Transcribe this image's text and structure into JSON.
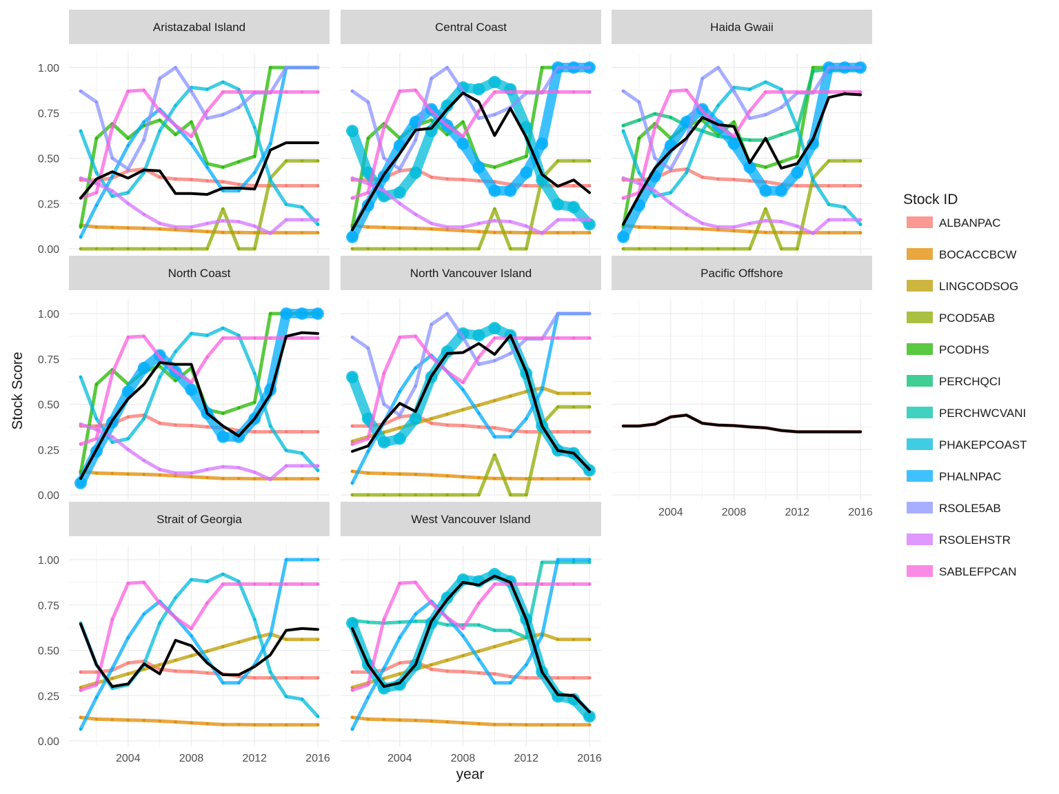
{
  "chart_data": {
    "type": "line",
    "facet_by": "Region",
    "xlabel": "year",
    "ylabel": "Stock Score",
    "xlim": [
      2001,
      2016
    ],
    "ylim": [
      0,
      1
    ],
    "x_ticks": [
      2004,
      2008,
      2012,
      2016
    ],
    "y_ticks": [
      0,
      0.25,
      0.5,
      0.75,
      1
    ],
    "y_tick_labels": [
      "0.00",
      "0.25",
      "0.50",
      "0.75",
      "1.00"
    ],
    "grid": true,
    "legend": {
      "title": "Stock ID",
      "position": "right"
    },
    "years": [
      2001,
      2002,
      2003,
      2004,
      2005,
      2006,
      2007,
      2008,
      2009,
      2010,
      2011,
      2012,
      2013,
      2014,
      2015,
      2016
    ],
    "series": [
      {
        "name": "ALBANPAC",
        "color": "#F8766D",
        "values": [
          0.38,
          0.38,
          0.39,
          0.43,
          0.44,
          0.395,
          0.385,
          0.382,
          0.375,
          0.37,
          0.355,
          0.348,
          0.348,
          0.348,
          0.348,
          0.348
        ]
      },
      {
        "name": "BOCACCBCW",
        "color": "#E18A00",
        "values": [
          0.13,
          0.12,
          0.118,
          0.115,
          0.113,
          0.11,
          0.105,
          0.1,
          0.095,
          0.09,
          0.09,
          0.089,
          0.089,
          0.089,
          0.089,
          0.089
        ]
      },
      {
        "name": "LINGCODSOG",
        "color": "#BE9C00",
        "values": [
          0.295,
          0.32,
          0.345,
          0.37,
          0.395,
          0.42,
          0.445,
          0.47,
          0.495,
          0.52,
          0.545,
          0.57,
          0.59,
          0.56,
          0.56,
          0.56
        ]
      },
      {
        "name": "PCOD5AB",
        "color": "#8CAB00",
        "values": [
          0,
          0,
          0,
          0,
          0,
          0,
          0,
          0,
          0,
          0.22,
          0,
          0,
          0.39,
          0.485,
          0.485,
          0.485
        ]
      },
      {
        "name": "PCODHS",
        "color": "#24B700",
        "values": [
          0.12,
          0.61,
          0.69,
          0.61,
          0.68,
          0.71,
          0.63,
          0.7,
          0.47,
          0.45,
          0.48,
          0.51,
          1,
          1,
          1,
          1
        ]
      },
      {
        "name": "PERCHQCI",
        "color": "#00BE70",
        "values": [
          0.68,
          0.71,
          0.745,
          0.725,
          0.68,
          0.65,
          0.62,
          0.61,
          0.6,
          0.6,
          0.63,
          0.66,
          0.98,
          0.99,
          0.99,
          0.99
        ]
      },
      {
        "name": "PERCHWCVANI",
        "color": "#00C1AB",
        "values": [
          0.665,
          0.655,
          0.65,
          0.655,
          0.66,
          0.66,
          0.64,
          0.64,
          0.64,
          0.61,
          0.61,
          0.57,
          0.985,
          0.985,
          0.985,
          0.985
        ]
      },
      {
        "name": "PHAKEPCOAST",
        "color": "#00BBDA",
        "values": [
          0.65,
          0.42,
          0.29,
          0.31,
          0.42,
          0.65,
          0.79,
          0.89,
          0.88,
          0.92,
          0.88,
          0.67,
          0.38,
          0.245,
          0.23,
          0.135
        ]
      },
      {
        "name": "PHALNPAC",
        "color": "#00ACFC",
        "values": [
          0.065,
          0.24,
          0.4,
          0.57,
          0.7,
          0.77,
          0.68,
          0.58,
          0.45,
          0.32,
          0.32,
          0.42,
          0.58,
          1,
          1,
          1
        ]
      },
      {
        "name": "RSOLE5AB",
        "color": "#8B93FF",
        "values": [
          0.87,
          0.81,
          0.5,
          0.44,
          0.6,
          0.94,
          1,
          0.87,
          0.72,
          0.74,
          0.78,
          0.86,
          0.86,
          1,
          1,
          1
        ]
      },
      {
        "name": "RSOLEHSTR",
        "color": "#D575FE",
        "values": [
          0.39,
          0.36,
          0.32,
          0.25,
          0.19,
          0.14,
          0.12,
          0.12,
          0.14,
          0.155,
          0.15,
          0.125,
          0.085,
          0.16,
          0.16,
          0.16
        ]
      },
      {
        "name": "SABLEFPCAN",
        "color": "#F962DD",
        "values": [
          0.28,
          0.31,
          0.67,
          0.87,
          0.875,
          0.76,
          0.68,
          0.62,
          0.76,
          0.865,
          0.865,
          0.865,
          0.865,
          0.865,
          0.865,
          0.865
        ]
      }
    ],
    "facets": [
      {
        "title": "Aristazabal Island",
        "stocks": [
          "ALBANPAC",
          "BOCACCBCW",
          "PCOD5AB",
          "PCODHS",
          "PHAKEPCOAST",
          "PHALNPAC",
          "RSOLE5AB",
          "RSOLEHSTR",
          "SABLEFPCAN"
        ],
        "thick": [],
        "mean": [
          0.28,
          0.385,
          0.425,
          0.39,
          0.435,
          0.43,
          0.305,
          0.305,
          0.3,
          0.335,
          0.335,
          0.33,
          0.545,
          0.585,
          0.585,
          0.585
        ]
      },
      {
        "title": "Central Coast",
        "stocks": [
          "ALBANPAC",
          "BOCACCBCW",
          "PCOD5AB",
          "PCODHS",
          "PHAKEPCOAST",
          "PHALNPAC",
          "RSOLE5AB",
          "RSOLEHSTR",
          "SABLEFPCAN"
        ],
        "thick": [
          "PHAKEPCOAST",
          "PHALNPAC"
        ],
        "mean": [
          0.105,
          0.26,
          0.41,
          0.525,
          0.655,
          0.665,
          0.77,
          0.86,
          0.81,
          0.625,
          0.775,
          0.615,
          0.41,
          0.345,
          0.38,
          0.31
        ]
      },
      {
        "title": "Haida Gwaii",
        "stocks": [
          "ALBANPAC",
          "BOCACCBCW",
          "PCOD5AB",
          "PCODHS",
          "PERCHQCI",
          "PHAKEPCOAST",
          "PHALNPAC",
          "RSOLE5AB",
          "RSOLEHSTR",
          "SABLEFPCAN"
        ],
        "thick": [
          "PHALNPAC"
        ],
        "mean": [
          0.135,
          0.295,
          0.445,
          0.54,
          0.61,
          0.725,
          0.685,
          0.675,
          0.475,
          0.61,
          0.445,
          0.47,
          0.605,
          0.835,
          0.855,
          0.85
        ]
      },
      {
        "title": "North Coast",
        "stocks": [
          "ALBANPAC",
          "BOCACCBCW",
          "PCODHS",
          "PHAKEPCOAST",
          "PHALNPAC",
          "RSOLEHSTR",
          "SABLEFPCAN"
        ],
        "thick": [
          "PHALNPAC"
        ],
        "mean": [
          0.09,
          0.25,
          0.41,
          0.53,
          0.61,
          0.73,
          0.72,
          0.72,
          0.45,
          0.38,
          0.325,
          0.42,
          0.555,
          0.875,
          0.895,
          0.89
        ]
      },
      {
        "title": "North Vancouver Island",
        "stocks": [
          "ALBANPAC",
          "BOCACCBCW",
          "LINGCODSOG",
          "PCOD5AB",
          "PHAKEPCOAST",
          "PHALNPAC",
          "RSOLE5AB",
          "SABLEFPCAN"
        ],
        "thick": [
          "PHAKEPCOAST"
        ],
        "mean": [
          0.24,
          0.27,
          0.405,
          0.505,
          0.46,
          0.655,
          0.78,
          0.785,
          0.835,
          0.775,
          0.88,
          0.68,
          0.38,
          0.245,
          0.23,
          0.14
        ]
      },
      {
        "title": "Pacific Offshore",
        "stocks": [
          "ALBANPAC"
        ],
        "thick": [],
        "mean": [
          0.38,
          0.38,
          0.39,
          0.43,
          0.44,
          0.395,
          0.385,
          0.382,
          0.375,
          0.37,
          0.355,
          0.348,
          0.348,
          0.348,
          0.348,
          0.348
        ]
      },
      {
        "title": "Strait of Georgia",
        "stocks": [
          "ALBANPAC",
          "BOCACCBCW",
          "LINGCODSOG",
          "PHAKEPCOAST",
          "PHALNPAC",
          "SABLEFPCAN"
        ],
        "thick": [],
        "mean": [
          0.645,
          0.42,
          0.3,
          0.315,
          0.425,
          0.37,
          0.555,
          0.525,
          0.43,
          0.365,
          0.365,
          0.41,
          0.475,
          0.61,
          0.62,
          0.615
        ]
      },
      {
        "title": "West Vancouver Island",
        "stocks": [
          "ALBANPAC",
          "BOCACCBCW",
          "LINGCODSOG",
          "PERCHWCVANI",
          "PHAKEPCOAST",
          "PHALNPAC",
          "SABLEFPCAN"
        ],
        "thick": [
          "PHAKEPCOAST"
        ],
        "mean": [
          0.62,
          0.42,
          0.3,
          0.32,
          0.42,
          0.66,
          0.78,
          0.875,
          0.86,
          0.91,
          0.875,
          0.67,
          0.38,
          0.255,
          0.25,
          0.16
        ]
      }
    ]
  }
}
